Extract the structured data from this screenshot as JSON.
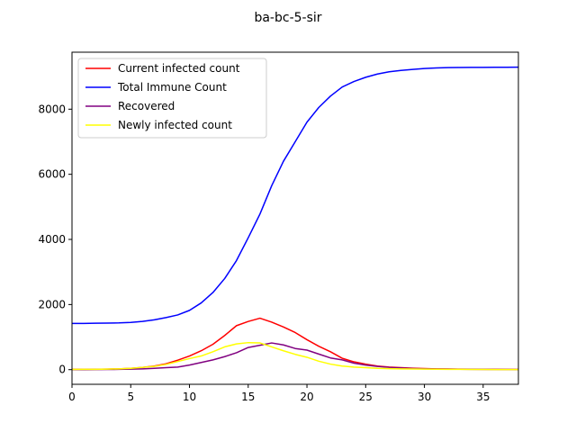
{
  "chart_data": {
    "type": "line",
    "title": "ba-bc-5-sir",
    "xlabel": "",
    "ylabel": "",
    "xlim": [
      0,
      38
    ],
    "ylim": [
      -450,
      9750
    ],
    "xticks": [
      0,
      5,
      10,
      15,
      20,
      25,
      30,
      35
    ],
    "yticks": [
      0,
      2000,
      4000,
      6000,
      8000
    ],
    "grid": false,
    "legend_position": "upper-left",
    "x": [
      0,
      1,
      2,
      3,
      4,
      5,
      6,
      7,
      8,
      9,
      10,
      11,
      12,
      13,
      14,
      15,
      16,
      17,
      18,
      19,
      20,
      21,
      22,
      23,
      24,
      25,
      26,
      27,
      28,
      29,
      30,
      31,
      32,
      33,
      34,
      35,
      36,
      37,
      38
    ],
    "series": [
      {
        "name": "Current infected count",
        "color": "#ff0000",
        "values": [
          10,
          10,
          12,
          15,
          25,
          40,
          70,
          110,
          180,
          290,
          420,
          580,
          780,
          1050,
          1350,
          1480,
          1580,
          1460,
          1310,
          1140,
          920,
          720,
          550,
          350,
          240,
          170,
          110,
          80,
          60,
          45,
          35,
          25,
          20,
          15,
          12,
          10,
          8,
          6,
          5
        ]
      },
      {
        "name": "Total Immune Count",
        "color": "#0000ff",
        "values": [
          1420,
          1420,
          1425,
          1430,
          1435,
          1450,
          1480,
          1530,
          1600,
          1680,
          1820,
          2050,
          2370,
          2800,
          3350,
          4050,
          4780,
          5650,
          6400,
          7000,
          7600,
          8050,
          8400,
          8680,
          8850,
          8980,
          9080,
          9150,
          9190,
          9220,
          9250,
          9265,
          9275,
          9280,
          9283,
          9285,
          9287,
          9288,
          9290
        ]
      },
      {
        "name": "Recovered",
        "color": "#800080",
        "values": [
          0,
          0,
          2,
          5,
          8,
          15,
          25,
          40,
          60,
          80,
          140,
          220,
          300,
          400,
          520,
          680,
          750,
          820,
          760,
          650,
          600,
          480,
          360,
          300,
          200,
          140,
          100,
          70,
          50,
          35,
          25,
          20,
          15,
          12,
          10,
          8,
          6,
          5,
          4
        ]
      },
      {
        "name": "Newly infected count",
        "color": "#ffff00",
        "values": [
          5,
          8,
          10,
          15,
          25,
          40,
          70,
          100,
          160,
          250,
          340,
          420,
          550,
          700,
          790,
          830,
          820,
          700,
          580,
          470,
          380,
          260,
          170,
          110,
          80,
          60,
          40,
          30,
          25,
          20,
          15,
          12,
          10,
          8,
          6,
          5,
          4,
          3,
          2
        ]
      }
    ]
  }
}
